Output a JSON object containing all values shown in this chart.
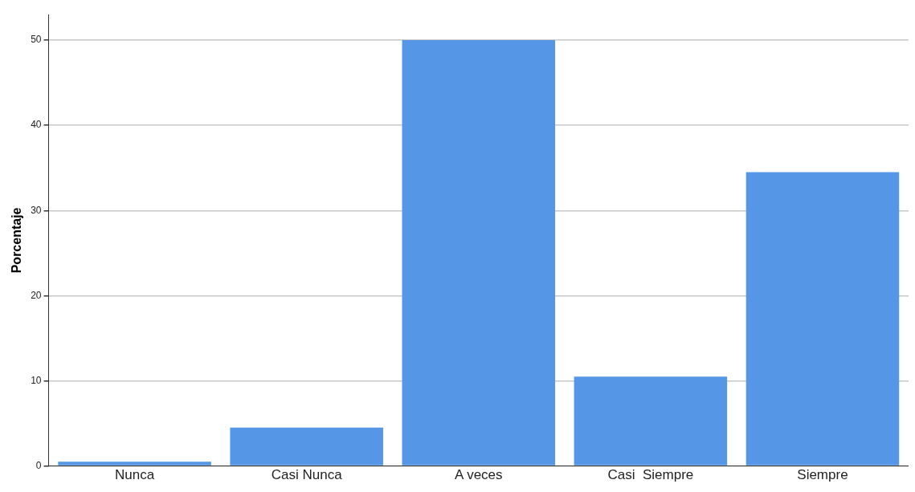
{
  "chart_data": {
    "type": "bar",
    "ylabel": "Porcentaje",
    "categories": [
      "Nunca",
      "Casi Nunca",
      "A veces",
      "Casi  Siempre",
      "Siempre"
    ],
    "values": [
      0.5,
      4.5,
      50,
      10.5,
      34.5
    ],
    "color": "#5596e6",
    "ylim": [
      0,
      53
    ],
    "yticks": [
      0,
      10,
      20,
      30,
      40,
      50
    ],
    "grid": "y",
    "legend": false
  }
}
